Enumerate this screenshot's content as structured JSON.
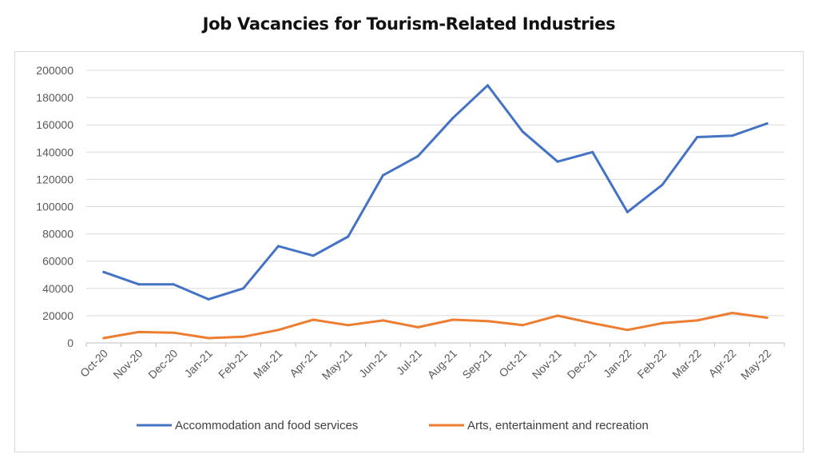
{
  "chart_data": {
    "type": "line",
    "title": "Job Vacancies for Tourism-Related Industries",
    "xlabel": "",
    "ylabel": "",
    "x": [
      "Oct-20",
      "Nov-20",
      "Dec-20",
      "Jan-21",
      "Feb-21",
      "Mar-21",
      "Apr-21",
      "May-21",
      "Jun-21",
      "Jul-21",
      "Aug-21",
      "Sep-21",
      "Oct-21",
      "Nov-21",
      "Dec-21",
      "Jan-22",
      "Feb-22",
      "Mar-22",
      "Apr-22",
      "May-22"
    ],
    "ylim": [
      0,
      200000
    ],
    "yticks": [
      0,
      20000,
      40000,
      60000,
      80000,
      100000,
      120000,
      140000,
      160000,
      180000,
      200000
    ],
    "grid": true,
    "legend": "bottom",
    "series": [
      {
        "name": "Accommodation and food services",
        "color": "#4472C4",
        "values": [
          52000,
          43000,
          43000,
          32000,
          40000,
          71000,
          64000,
          78000,
          123000,
          137000,
          165000,
          189000,
          155000,
          133000,
          140000,
          96000,
          116000,
          151000,
          152000,
          161000
        ]
      },
      {
        "name": "Arts, entertainment and recreation",
        "color": "#ED7D31",
        "values": [
          3500,
          8000,
          7500,
          3500,
          4500,
          9500,
          17000,
          13000,
          16500,
          11500,
          17000,
          16000,
          13000,
          20000,
          14500,
          9500,
          14500,
          16500,
          22000,
          18500
        ]
      }
    ]
  }
}
